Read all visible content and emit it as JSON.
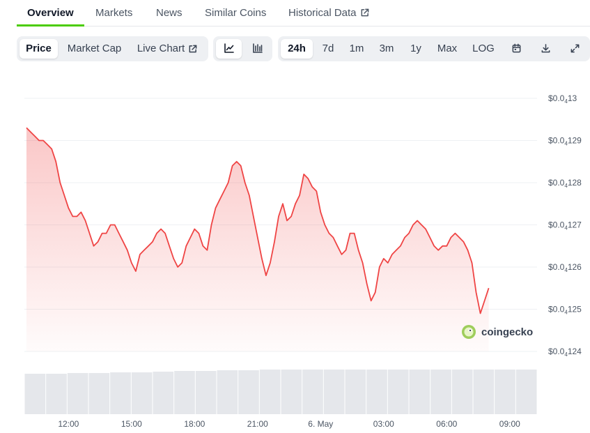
{
  "tabs": [
    {
      "label": "Overview",
      "active": true
    },
    {
      "label": "Markets"
    },
    {
      "label": "News"
    },
    {
      "label": "Similar Coins"
    },
    {
      "label": "Historical Data",
      "icon": "external-link-icon"
    }
  ],
  "toolbar": {
    "metric": [
      {
        "label": "Price",
        "active": true
      },
      {
        "label": "Market Cap"
      },
      {
        "label": "Live Chart",
        "icon": "external-link-icon"
      }
    ],
    "chart_style": [
      {
        "icon": "line-chart-icon",
        "active": true
      },
      {
        "icon": "candlestick-icon"
      }
    ],
    "ranges": [
      {
        "label": "24h",
        "active": true
      },
      {
        "label": "7d"
      },
      {
        "label": "1m"
      },
      {
        "label": "3m"
      },
      {
        "label": "1y"
      },
      {
        "label": "Max"
      },
      {
        "label": "LOG"
      }
    ],
    "actions": [
      "calendar-icon",
      "download-icon",
      "fullscreen-icon"
    ]
  },
  "brand": {
    "name": "coingecko",
    "icon": "coingecko-logo-icon"
  },
  "colors": {
    "line": "#ef4444",
    "accent": "#4bcc00",
    "volume": "#e5e7eb",
    "grid": "#eef0f3"
  },
  "chart_data": {
    "type": "area",
    "y_tick_values": [
      1.3e-05,
      1.29e-05,
      1.28e-05,
      1.27e-05,
      1.26e-05,
      1.25e-05,
      1.24e-05
    ],
    "y_ticks": [
      {
        "prefix": "$0.0",
        "sub": "4",
        "digits": "13"
      },
      {
        "prefix": "$0.0",
        "sub": "4",
        "digits": "129"
      },
      {
        "prefix": "$0.0",
        "sub": "4",
        "digits": "128"
      },
      {
        "prefix": "$0.0",
        "sub": "4",
        "digits": "127"
      },
      {
        "prefix": "$0.0",
        "sub": "4",
        "digits": "126"
      },
      {
        "prefix": "$0.0",
        "sub": "4",
        "digits": "125"
      },
      {
        "prefix": "$0.0",
        "sub": "4",
        "digits": "124"
      }
    ],
    "ylim": [
      1.24e-05,
      1.3e-05
    ],
    "x_ticks": [
      {
        "label": "12:00",
        "hour": 12
      },
      {
        "label": "15:00",
        "hour": 15
      },
      {
        "label": "18:00",
        "hour": 18
      },
      {
        "label": "21:00",
        "hour": 21
      },
      {
        "label": "6. May",
        "hour": 24
      },
      {
        "label": "03:00",
        "hour": 27
      },
      {
        "label": "06:00",
        "hour": 30
      },
      {
        "label": "09:00",
        "hour": 33
      }
    ],
    "xlim": [
      9.9,
      34.3
    ],
    "series": [
      {
        "points": [
          [
            10.0,
            1.293e-05
          ],
          [
            10.2,
            1.292e-05
          ],
          [
            10.4,
            1.291e-05
          ],
          [
            10.6,
            1.29e-05
          ],
          [
            10.8,
            1.29e-05
          ],
          [
            11.0,
            1.289e-05
          ],
          [
            11.2,
            1.288e-05
          ],
          [
            11.4,
            1.285e-05
          ],
          [
            11.6,
            1.28e-05
          ],
          [
            11.8,
            1.277e-05
          ],
          [
            12.0,
            1.274e-05
          ],
          [
            12.2,
            1.272e-05
          ],
          [
            12.4,
            1.272e-05
          ],
          [
            12.6,
            1.273e-05
          ],
          [
            12.8,
            1.271e-05
          ],
          [
            13.0,
            1.268e-05
          ],
          [
            13.2,
            1.265e-05
          ],
          [
            13.4,
            1.266e-05
          ],
          [
            13.6,
            1.268e-05
          ],
          [
            13.8,
            1.268e-05
          ],
          [
            14.0,
            1.27e-05
          ],
          [
            14.2,
            1.27e-05
          ],
          [
            14.4,
            1.268e-05
          ],
          [
            14.6,
            1.266e-05
          ],
          [
            14.8,
            1.264e-05
          ],
          [
            15.0,
            1.261e-05
          ],
          [
            15.2,
            1.259e-05
          ],
          [
            15.4,
            1.263e-05
          ],
          [
            15.6,
            1.264e-05
          ],
          [
            15.8,
            1.265e-05
          ],
          [
            16.0,
            1.266e-05
          ],
          [
            16.2,
            1.268e-05
          ],
          [
            16.4,
            1.269e-05
          ],
          [
            16.6,
            1.268e-05
          ],
          [
            16.8,
            1.265e-05
          ],
          [
            17.0,
            1.262e-05
          ],
          [
            17.2,
            1.26e-05
          ],
          [
            17.4,
            1.261e-05
          ],
          [
            17.6,
            1.265e-05
          ],
          [
            17.8,
            1.267e-05
          ],
          [
            18.0,
            1.269e-05
          ],
          [
            18.2,
            1.268e-05
          ],
          [
            18.4,
            1.265e-05
          ],
          [
            18.6,
            1.264e-05
          ],
          [
            18.8,
            1.27e-05
          ],
          [
            19.0,
            1.274e-05
          ],
          [
            19.2,
            1.276e-05
          ],
          [
            19.4,
            1.278e-05
          ],
          [
            19.6,
            1.28e-05
          ],
          [
            19.8,
            1.284e-05
          ],
          [
            20.0,
            1.285e-05
          ],
          [
            20.2,
            1.284e-05
          ],
          [
            20.4,
            1.28e-05
          ],
          [
            20.6,
            1.277e-05
          ],
          [
            20.8,
            1.272e-05
          ],
          [
            21.0,
            1.267e-05
          ],
          [
            21.2,
            1.262e-05
          ],
          [
            21.4,
            1.258e-05
          ],
          [
            21.6,
            1.261e-05
          ],
          [
            21.8,
            1.266e-05
          ],
          [
            22.0,
            1.272e-05
          ],
          [
            22.2,
            1.275e-05
          ],
          [
            22.4,
            1.271e-05
          ],
          [
            22.6,
            1.272e-05
          ],
          [
            22.8,
            1.275e-05
          ],
          [
            23.0,
            1.277e-05
          ],
          [
            23.2,
            1.282e-05
          ],
          [
            23.4,
            1.281e-05
          ],
          [
            23.6,
            1.279e-05
          ],
          [
            23.8,
            1.278e-05
          ],
          [
            24.0,
            1.273e-05
          ],
          [
            24.2,
            1.27e-05
          ],
          [
            24.4,
            1.268e-05
          ],
          [
            24.6,
            1.267e-05
          ],
          [
            24.8,
            1.265e-05
          ],
          [
            25.0,
            1.263e-05
          ],
          [
            25.2,
            1.264e-05
          ],
          [
            25.4,
            1.268e-05
          ],
          [
            25.6,
            1.268e-05
          ],
          [
            25.8,
            1.264e-05
          ],
          [
            26.0,
            1.261e-05
          ],
          [
            26.2,
            1.256e-05
          ],
          [
            26.4,
            1.252e-05
          ],
          [
            26.6,
            1.254e-05
          ],
          [
            26.8,
            1.26e-05
          ],
          [
            27.0,
            1.262e-05
          ],
          [
            27.2,
            1.261e-05
          ],
          [
            27.4,
            1.263e-05
          ],
          [
            27.6,
            1.264e-05
          ],
          [
            27.8,
            1.265e-05
          ],
          [
            28.0,
            1.267e-05
          ],
          [
            28.2,
            1.268e-05
          ],
          [
            28.4,
            1.27e-05
          ],
          [
            28.6,
            1.271e-05
          ],
          [
            28.8,
            1.27e-05
          ],
          [
            29.0,
            1.269e-05
          ],
          [
            29.2,
            1.267e-05
          ],
          [
            29.4,
            1.265e-05
          ],
          [
            29.6,
            1.264e-05
          ],
          [
            29.8,
            1.265e-05
          ],
          [
            30.0,
            1.265e-05
          ],
          [
            30.2,
            1.267e-05
          ],
          [
            30.4,
            1.268e-05
          ],
          [
            30.6,
            1.267e-05
          ],
          [
            30.8,
            1.266e-05
          ],
          [
            31.0,
            1.264e-05
          ],
          [
            31.2,
            1.261e-05
          ],
          [
            31.4,
            1.254e-05
          ],
          [
            31.6,
            1.249e-05
          ],
          [
            31.8,
            1.252e-05
          ],
          [
            32.0,
            1.255e-05
          ]
        ]
      }
    ],
    "volume": {
      "values": [
        0.58,
        0.58,
        0.59,
        0.59,
        0.6,
        0.6,
        0.61,
        0.62,
        0.62,
        0.63,
        0.63,
        0.64,
        0.64,
        0.64,
        0.64,
        0.64,
        0.64,
        0.64,
        0.64,
        0.64,
        0.64,
        0.64,
        0.64,
        0.64
      ]
    },
    "grid": true,
    "legend": "none"
  }
}
